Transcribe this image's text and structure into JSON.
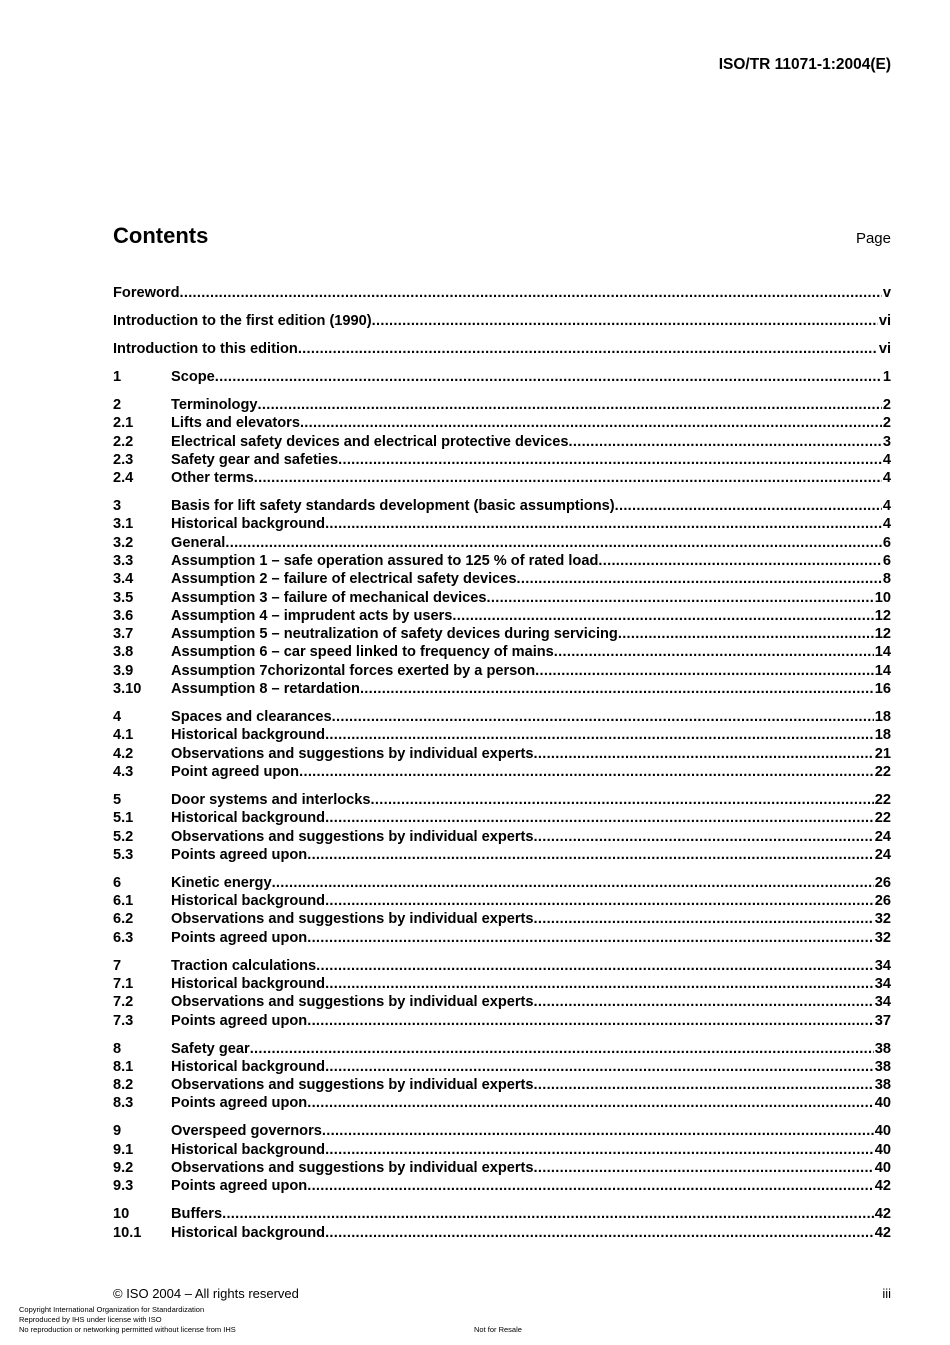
{
  "header": {
    "doc_id": "ISO/TR 11071-1:2004(E)"
  },
  "contents": {
    "title": "Contents",
    "page_label": "Page"
  },
  "toc": [
    [
      {
        "num": "",
        "title": "Foreword",
        "page": "v"
      }
    ],
    [
      {
        "num": "",
        "title": "Introduction to the first edition (1990)",
        "page": "vi"
      }
    ],
    [
      {
        "num": "",
        "title": "Introduction to this edition",
        "page": "vi"
      }
    ],
    [
      {
        "num": "1",
        "title": "Scope",
        "page": "1"
      }
    ],
    [
      {
        "num": "2",
        "title": "Terminology",
        "page": "2"
      },
      {
        "num": "2.1",
        "title": "Lifts and elevators",
        "page": "2"
      },
      {
        "num": "2.2",
        "title": "Electrical safety devices and electrical protective devices",
        "page": "3"
      },
      {
        "num": "2.3",
        "title": "Safety gear and safeties",
        "page": "4"
      },
      {
        "num": "2.4",
        "title": "Other terms",
        "page": "4"
      }
    ],
    [
      {
        "num": "3",
        "title": "Basis for lift safety standards development (basic assumptions)",
        "page": "4"
      },
      {
        "num": "3.1",
        "title": "Historical background",
        "page": "4"
      },
      {
        "num": "3.2",
        "title": "General",
        "page": "6"
      },
      {
        "num": "3.3",
        "title": "Assumption 1 – safe operation assured to 125 % of rated load",
        "page": "6"
      },
      {
        "num": "3.4",
        "title": "Assumption 2 – failure of electrical safety devices",
        "page": "8"
      },
      {
        "num": "3.5",
        "title": "Assumption 3 – failure of mechanical devices",
        "page": "10"
      },
      {
        "num": "3.6",
        "title": "Assumption 4 – imprudent acts by users",
        "page": "12"
      },
      {
        "num": "3.7",
        "title": "Assumption 5 – neutralization of safety devices during servicing",
        "page": "12"
      },
      {
        "num": "3.8",
        "title": "Assumption 6 – car speed linked to frequency of mains",
        "page": "14"
      },
      {
        "num": "3.9",
        "title": "Assumption 7chorizontal forces exerted by a person",
        "page": "14"
      },
      {
        "num": "3.10",
        "title": "Assumption 8 – retardation",
        "page": "16"
      }
    ],
    [
      {
        "num": "4",
        "title": "Spaces and clearances",
        "page": "18"
      },
      {
        "num": "4.1",
        "title": "Historical background",
        "page": "18"
      },
      {
        "num": "4.2",
        "title": "Observations and suggestions by individual experts",
        "page": "21"
      },
      {
        "num": "4.3",
        "title": "Point agreed upon",
        "page": "22"
      }
    ],
    [
      {
        "num": "5",
        "title": "Door systems and interlocks",
        "page": "22"
      },
      {
        "num": "5.1",
        "title": "Historical background",
        "page": "22"
      },
      {
        "num": "5.2",
        "title": "Observations and suggestions by individual experts",
        "page": "24"
      },
      {
        "num": "5.3",
        "title": "Points agreed upon",
        "page": "24"
      }
    ],
    [
      {
        "num": "6",
        "title": "Kinetic energy",
        "page": "26"
      },
      {
        "num": "6.1",
        "title": "Historical background",
        "page": "26"
      },
      {
        "num": "6.2",
        "title": "Observations and suggestions by individual experts",
        "page": "32"
      },
      {
        "num": "6.3",
        "title": "Points agreed upon",
        "page": "32"
      }
    ],
    [
      {
        "num": "7",
        "title": "Traction calculations",
        "page": "34"
      },
      {
        "num": "7.1",
        "title": "Historical background",
        "page": "34"
      },
      {
        "num": "7.2",
        "title": "Observations and suggestions by individual experts",
        "page": "34"
      },
      {
        "num": "7.3",
        "title": "Points agreed upon",
        "page": "37"
      }
    ],
    [
      {
        "num": "8",
        "title": "Safety gear",
        "page": "38"
      },
      {
        "num": "8.1",
        "title": "Historical background",
        "page": "38"
      },
      {
        "num": "8.2",
        "title": "Observations and suggestions by individual experts",
        "page": "38"
      },
      {
        "num": "8.3",
        "title": "Points agreed upon",
        "page": "40"
      }
    ],
    [
      {
        "num": "9",
        "title": "Overspeed governors",
        "page": "40"
      },
      {
        "num": "9.1",
        "title": "Historical background",
        "page": "40"
      },
      {
        "num": "9.2",
        "title": "Observations and suggestions by individual experts",
        "page": "40"
      },
      {
        "num": "9.3",
        "title": "Points agreed upon",
        "page": "42"
      }
    ],
    [
      {
        "num": "10",
        "title": "Buffers",
        "page": "42"
      },
      {
        "num": "10.1",
        "title": "Historical background",
        "page": "42"
      }
    ]
  ],
  "footer": {
    "rights": "© ISO 2004 – All rights reserved",
    "page_number": "iii",
    "license_lines": [
      "Copyright International Organization for Standardization",
      "Reproduced by IHS under license with ISO",
      "No reproduction or networking permitted without license from IHS"
    ],
    "resale": "Not for Resale"
  }
}
